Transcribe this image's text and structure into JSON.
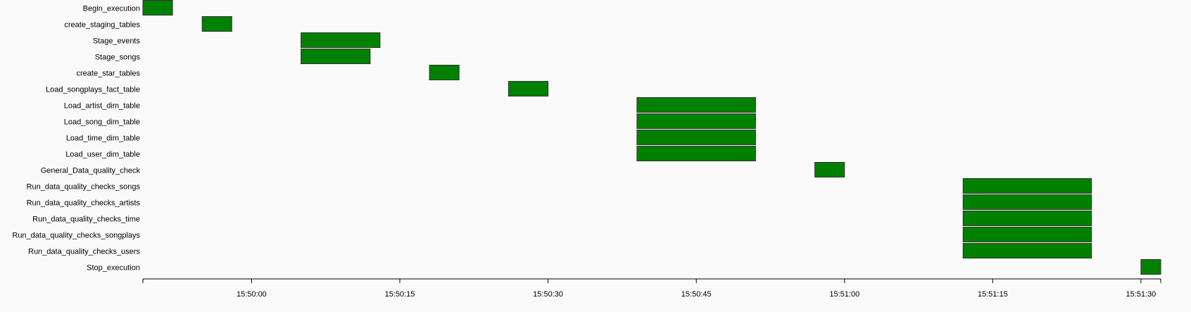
{
  "chart_data": {
    "type": "gantt",
    "x_axis": {
      "ticks": [
        "15:50:00",
        "15:50:15",
        "15:50:30",
        "15:50:45",
        "15:51:00",
        "15:51:15",
        "15:51:30"
      ],
      "range": [
        "15:49:49",
        "15:51:32"
      ]
    },
    "bar_color": "#008000",
    "bar_border": "#333333",
    "tasks": [
      {
        "name": "Begin_execution",
        "start": "15:49:49",
        "end": "15:49:52"
      },
      {
        "name": "create_staging_tables",
        "start": "15:49:55",
        "end": "15:49:58"
      },
      {
        "name": "Stage_events",
        "start": "15:50:05",
        "end": "15:50:13"
      },
      {
        "name": "Stage_songs",
        "start": "15:50:05",
        "end": "15:50:12"
      },
      {
        "name": "create_star_tables",
        "start": "15:50:18",
        "end": "15:50:21"
      },
      {
        "name": "Load_songplays_fact_table",
        "start": "15:50:26",
        "end": "15:50:30"
      },
      {
        "name": "Load_artist_dim_table",
        "start": "15:50:39",
        "end": "15:50:51"
      },
      {
        "name": "Load_song_dim_table",
        "start": "15:50:39",
        "end": "15:50:51"
      },
      {
        "name": "Load_time_dim_table",
        "start": "15:50:39",
        "end": "15:50:51"
      },
      {
        "name": "Load_user_dim_table",
        "start": "15:50:39",
        "end": "15:50:51"
      },
      {
        "name": "General_Data_quality_check",
        "start": "15:50:57",
        "end": "15:51:00"
      },
      {
        "name": "Run_data_quality_checks_songs",
        "start": "15:51:12",
        "end": "15:51:25"
      },
      {
        "name": "Run_data_quality_checks_artists",
        "start": "15:51:12",
        "end": "15:51:25"
      },
      {
        "name": "Run_data_quality_checks_time",
        "start": "15:51:12",
        "end": "15:51:25"
      },
      {
        "name": "Run_data_quality_checks_songplays",
        "start": "15:51:12",
        "end": "15:51:25"
      },
      {
        "name": "Run_data_quality_checks_users",
        "start": "15:51:12",
        "end": "15:51:25"
      },
      {
        "name": "Stop_execution",
        "start": "15:51:30",
        "end": "15:51:32"
      }
    ]
  }
}
